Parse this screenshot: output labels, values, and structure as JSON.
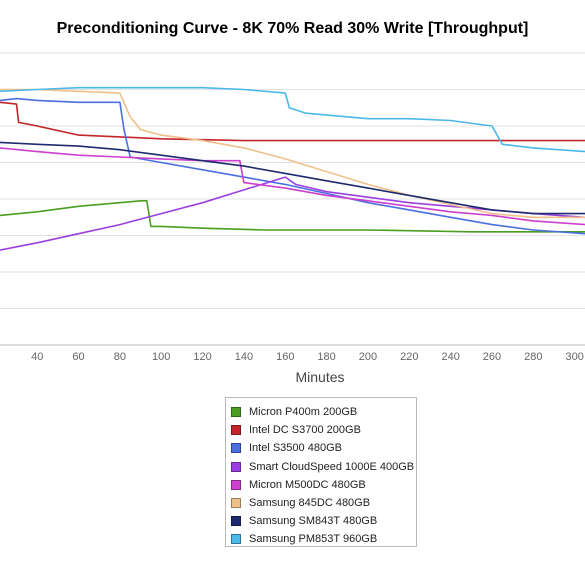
{
  "chart_data": {
    "type": "line",
    "title": "Preconditioning Curve - 8K 70% Read 30% Write [Throughput]",
    "xlabel": "Minutes",
    "ylabel": "",
    "xlim": [
      22,
      305
    ],
    "ylim": [
      0,
      160
    ],
    "x_ticks": [
      40,
      60,
      80,
      100,
      120,
      140,
      160,
      180,
      200,
      220,
      240,
      260,
      280,
      300
    ],
    "grid": true,
    "legend_position": "bottom-center",
    "series": [
      {
        "name": "Micron P400m 200GB",
        "color": "#4a9e22",
        "points": [
          [
            22,
            71
          ],
          [
            40,
            73
          ],
          [
            60,
            76
          ],
          [
            80,
            78
          ],
          [
            90,
            79
          ],
          [
            93,
            79
          ],
          [
            95,
            65
          ],
          [
            100,
            65
          ],
          [
            120,
            64
          ],
          [
            150,
            63
          ],
          [
            200,
            63
          ],
          [
            250,
            62
          ],
          [
            305,
            62
          ]
        ]
      },
      {
        "name": "Intel DC S3700 200GB",
        "color": "#c4252b",
        "points": [
          [
            22,
            133
          ],
          [
            30,
            132
          ],
          [
            31,
            122
          ],
          [
            40,
            120
          ],
          [
            60,
            115
          ],
          [
            80,
            114
          ],
          [
            100,
            113
          ],
          [
            140,
            112
          ],
          [
            160,
            112
          ],
          [
            200,
            112
          ],
          [
            250,
            112
          ],
          [
            305,
            112
          ]
        ]
      },
      {
        "name": "Intel S3500 480GB",
        "color": "#4a6fe0",
        "points": [
          [
            22,
            134
          ],
          [
            30,
            135
          ],
          [
            40,
            134
          ],
          [
            60,
            133
          ],
          [
            80,
            133
          ],
          [
            82,
            118
          ],
          [
            85,
            103
          ],
          [
            100,
            100
          ],
          [
            120,
            96
          ],
          [
            140,
            92
          ],
          [
            160,
            88
          ],
          [
            180,
            83
          ],
          [
            200,
            78
          ],
          [
            220,
            74
          ],
          [
            240,
            70
          ],
          [
            260,
            66
          ],
          [
            280,
            63
          ],
          [
            305,
            61
          ]
        ]
      },
      {
        "name": "Smart CloudSpeed 1000E 400GB",
        "color": "#9b3fe0",
        "points": [
          [
            22,
            52
          ],
          [
            40,
            56
          ],
          [
            60,
            61
          ],
          [
            80,
            66
          ],
          [
            100,
            72
          ],
          [
            120,
            78
          ],
          [
            140,
            85
          ],
          [
            160,
            92
          ],
          [
            165,
            88
          ],
          [
            180,
            84
          ],
          [
            200,
            81
          ],
          [
            220,
            78
          ],
          [
            240,
            76
          ],
          [
            260,
            74
          ],
          [
            280,
            72
          ],
          [
            305,
            70
          ]
        ]
      },
      {
        "name": "Micron M500DC 480GB",
        "color": "#cc3fcf",
        "points": [
          [
            22,
            108
          ],
          [
            40,
            106
          ],
          [
            60,
            104
          ],
          [
            80,
            103
          ],
          [
            100,
            102
          ],
          [
            120,
            101
          ],
          [
            138,
            101
          ],
          [
            140,
            89
          ],
          [
            160,
            86
          ],
          [
            180,
            82
          ],
          [
            200,
            79
          ],
          [
            220,
            76
          ],
          [
            240,
            73
          ],
          [
            260,
            71
          ],
          [
            280,
            68
          ],
          [
            305,
            66
          ]
        ]
      },
      {
        "name": "Samsung 845DC 480GB",
        "color": "#f0c08a",
        "points": [
          [
            22,
            140
          ],
          [
            40,
            140
          ],
          [
            60,
            139
          ],
          [
            80,
            138
          ],
          [
            85,
            125
          ],
          [
            90,
            118
          ],
          [
            100,
            115
          ],
          [
            120,
            112
          ],
          [
            140,
            108
          ],
          [
            160,
            102
          ],
          [
            180,
            95
          ],
          [
            200,
            88
          ],
          [
            220,
            82
          ],
          [
            240,
            77
          ],
          [
            260,
            72
          ],
          [
            280,
            70
          ],
          [
            305,
            70
          ]
        ]
      },
      {
        "name": "Samsung SM843T 480GB",
        "color": "#1e2b6e",
        "points": [
          [
            22,
            111
          ],
          [
            40,
            110
          ],
          [
            60,
            109
          ],
          [
            80,
            107
          ],
          [
            100,
            104
          ],
          [
            120,
            101
          ],
          [
            140,
            98
          ],
          [
            160,
            94
          ],
          [
            180,
            90
          ],
          [
            200,
            86
          ],
          [
            220,
            82
          ],
          [
            240,
            78
          ],
          [
            260,
            74
          ],
          [
            280,
            72
          ],
          [
            305,
            72
          ]
        ]
      },
      {
        "name": "Samsung PM853T 960GB",
        "color": "#4bb8e8",
        "points": [
          [
            22,
            139
          ],
          [
            40,
            140
          ],
          [
            60,
            141
          ],
          [
            80,
            141
          ],
          [
            100,
            141
          ],
          [
            120,
            141
          ],
          [
            140,
            140
          ],
          [
            160,
            138
          ],
          [
            162,
            130
          ],
          [
            170,
            127
          ],
          [
            200,
            124
          ],
          [
            220,
            124
          ],
          [
            240,
            123
          ],
          [
            260,
            120
          ],
          [
            265,
            110
          ],
          [
            280,
            108
          ],
          [
            305,
            106
          ]
        ]
      }
    ]
  }
}
